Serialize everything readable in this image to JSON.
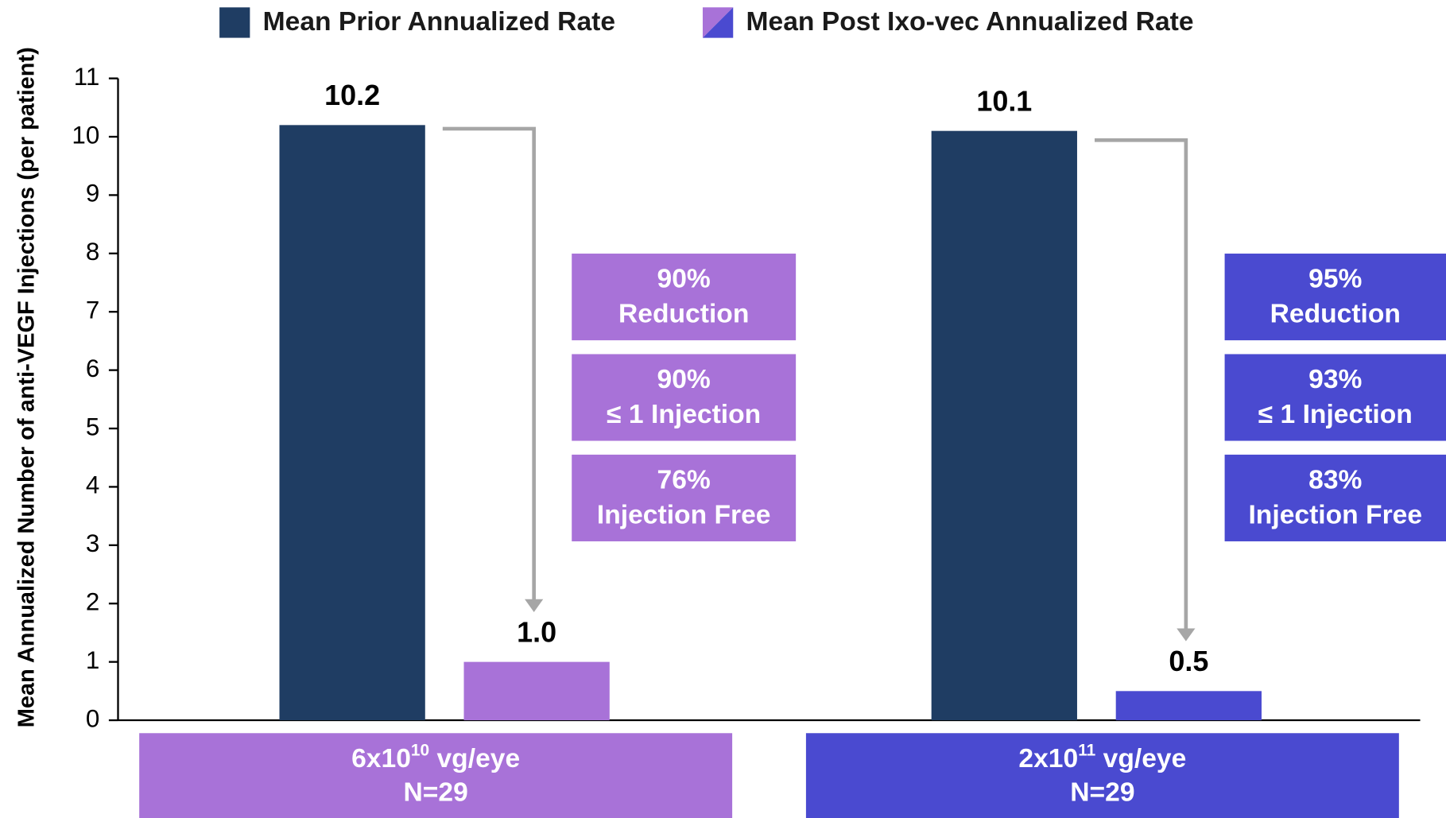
{
  "chart_data": {
    "type": "bar",
    "y_label": "Mean Annualized Number of anti-VEGF Injections (per patient)",
    "categories": [
      {
        "base": "6x10",
        "exp": "10",
        "unit": " vg/eye",
        "n": "N=29",
        "color": "#a872d8"
      },
      {
        "base": "2x10",
        "exp": "11",
        "unit": " vg/eye",
        "n": "N=29",
        "color": "#4a4ad0"
      }
    ],
    "series": [
      {
        "name": "Mean Prior Annualized Rate",
        "color": "#1f3d63",
        "values": [
          10.2,
          10.1
        ],
        "value_labels": [
          "10.2",
          "10.1"
        ]
      },
      {
        "name": "Mean Post Ixo-vec Annualized Rate",
        "colors": [
          "#a872d8",
          "#4a4ad0"
        ],
        "values": [
          1.0,
          0.5
        ],
        "value_labels": [
          "1.0",
          "0.5"
        ]
      }
    ],
    "annotations": [
      [
        [
          "90%",
          "Reduction"
        ],
        [
          "90%",
          "≤ 1 Injection"
        ],
        [
          "76%",
          "Injection Free"
        ]
      ],
      [
        [
          "95%",
          "Reduction"
        ],
        [
          "93%",
          "≤ 1 Injection"
        ],
        [
          "83%",
          "Injection Free"
        ]
      ]
    ],
    "ylim": [
      0,
      11
    ],
    "yticks": [
      0,
      1,
      2,
      3,
      4,
      5,
      6,
      7,
      8,
      9,
      10,
      11
    ]
  }
}
